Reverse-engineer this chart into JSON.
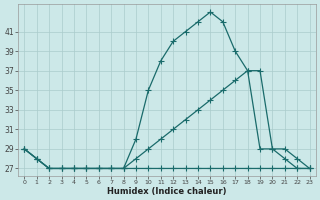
{
  "xlabel": "Humidex (Indice chaleur)",
  "bg_color": "#cce8e8",
  "grid_color": "#aacccc",
  "line_color": "#1a6b6b",
  "line1_x": [
    0,
    1,
    2,
    3,
    4,
    5,
    6,
    7,
    8,
    9,
    10,
    11,
    12,
    13,
    14,
    15,
    16,
    17,
    18,
    19,
    20,
    21,
    22,
    23
  ],
  "line1_y": [
    29,
    28,
    27,
    27,
    27,
    27,
    27,
    27,
    27,
    27,
    27,
    27,
    27,
    27,
    27,
    27,
    27,
    27,
    27,
    27,
    27,
    27,
    27,
    27
  ],
  "line2_x": [
    0,
    1,
    2,
    3,
    4,
    5,
    6,
    7,
    8,
    9,
    10,
    11,
    12,
    13,
    14,
    15,
    16,
    17,
    18,
    19,
    20,
    21,
    22,
    23
  ],
  "line2_y": [
    29,
    28,
    27,
    27,
    27,
    27,
    27,
    27,
    27,
    28,
    29,
    30,
    31,
    32,
    33,
    34,
    35,
    36,
    37,
    37,
    29,
    29,
    28,
    27
  ],
  "line3_x": [
    0,
    1,
    2,
    3,
    4,
    5,
    6,
    7,
    8,
    9,
    10,
    11,
    12,
    13,
    14,
    15,
    16,
    17,
    18,
    19,
    20,
    21,
    22,
    23
  ],
  "line3_y": [
    29,
    28,
    27,
    27,
    27,
    27,
    27,
    27,
    27,
    30,
    35,
    38,
    40,
    41,
    42,
    43,
    42,
    39,
    37,
    29,
    29,
    28,
    27,
    27
  ],
  "yticks": [
    27,
    29,
    31,
    33,
    35,
    37,
    39,
    41
  ],
  "ylim": [
    26.2,
    43.8
  ],
  "xlim": [
    -0.5,
    23.5
  ]
}
